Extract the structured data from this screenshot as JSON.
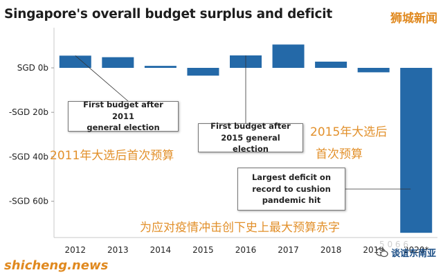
{
  "chart_data": {
    "type": "bar",
    "title": "Singapore's overall budget surplus and deficit",
    "categories": [
      "2012",
      "2013",
      "2014",
      "2015",
      "2016",
      "2017",
      "2018",
      "2019",
      "2020*"
    ],
    "values": [
      5.5,
      4.8,
      0.9,
      -3.5,
      5.6,
      10.5,
      2.8,
      -2.0,
      -74.2
    ],
    "ylim": [
      -80,
      12
    ],
    "yticks": [
      0,
      -20,
      -40,
      -60
    ],
    "ytick_labels": [
      "SGD 0b",
      "-SGD 20b",
      "-SGD 40b",
      "-SGD 60b"
    ],
    "bar_color": "#2469a8",
    "annotations": [
      {
        "text": "First budget after 2011 general election",
        "lines": [
          "First budget after 2011",
          "general election"
        ],
        "category": "2012"
      },
      {
        "text": "First budget after 2015 general election",
        "lines": [
          "First budget after",
          "2015 general election"
        ],
        "category": "2016"
      },
      {
        "text": "Largest deficit on record to cushion pandemic hit",
        "lines": [
          "Largest deficit on",
          "record to cushion",
          "pandemic hit"
        ],
        "category": "2020*"
      }
    ]
  },
  "overlay_text": {
    "ann_2011": "2011年大选后首次预算",
    "ann_2015_l1": "2015年大选后",
    "ann_2015_l2": "首次预算",
    "ann_2020": "为应对疫情冲击创下史上最大预算赤字"
  },
  "watermarks": {
    "top_right": "狮城新闻",
    "bottom_left": "shicheng.news",
    "bottom_right": "谈谊东南亚",
    "middle": "5 0 6 6"
  }
}
